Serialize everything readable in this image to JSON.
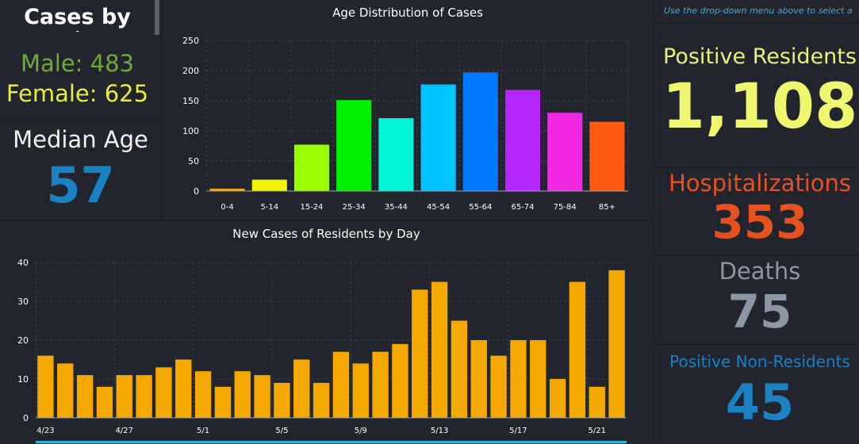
{
  "gender": {
    "title": "Cases by",
    "subtitle": "-",
    "male": "Male: 483",
    "female": "Female: 625"
  },
  "median": {
    "label": "Median Age",
    "value": "57"
  },
  "hint": "Use the drop-down menu above to select a",
  "positive_residents": {
    "label": "Positive Residents",
    "value": "1,108"
  },
  "hospitalizations": {
    "label": "Hospitalizations",
    "value": "353"
  },
  "deaths": {
    "label": "Deaths",
    "value": "75"
  },
  "positive_non_residents": {
    "label": "Positive Non-Residents",
    "value": "45"
  },
  "colors": {
    "male": "#6fac33",
    "female": "#e9ec3a",
    "median": "#1a82c3",
    "positive": "#f0f76e",
    "hospitalizations": "#e6521f",
    "deaths": "#8d96a7",
    "non_residents": "#1a82c3",
    "daily_bars": "#f5a800"
  },
  "chart_data": [
    {
      "type": "bar",
      "title": "Age Distribution of Cases",
      "categories": [
        "0-4",
        "5-14",
        "15-24",
        "25-34",
        "35-44",
        "45-54",
        "55-64",
        "65-74",
        "75-84",
        "85+"
      ],
      "values": [
        4,
        19,
        77,
        151,
        121,
        177,
        197,
        168,
        130,
        115
      ],
      "colors": [
        "#f5a800",
        "#f3f300",
        "#99ff00",
        "#00f000",
        "#00f5d8",
        "#00c4ff",
        "#0078ff",
        "#b526ff",
        "#f026e0",
        "#ff5a12"
      ],
      "yticks": [
        0,
        50,
        100,
        150,
        200,
        250
      ],
      "ylim": [
        0,
        250
      ],
      "grid": true
    },
    {
      "type": "bar",
      "title": "New Cases of Residents by Day",
      "x_tick_labels": [
        "4/23",
        "4/27",
        "5/1",
        "5/5",
        "5/9",
        "5/13",
        "5/17",
        "5/21"
      ],
      "values": [
        16,
        14,
        11,
        8,
        11,
        11,
        13,
        15,
        12,
        8,
        12,
        11,
        9,
        15,
        9,
        17,
        14,
        17,
        19,
        33,
        35,
        25,
        20,
        16,
        20,
        20,
        10,
        35,
        8,
        38
      ],
      "tick_every": 4,
      "yticks": [
        0,
        10,
        20,
        30,
        40
      ],
      "ylim": [
        0,
        40
      ],
      "grid": true
    }
  ]
}
